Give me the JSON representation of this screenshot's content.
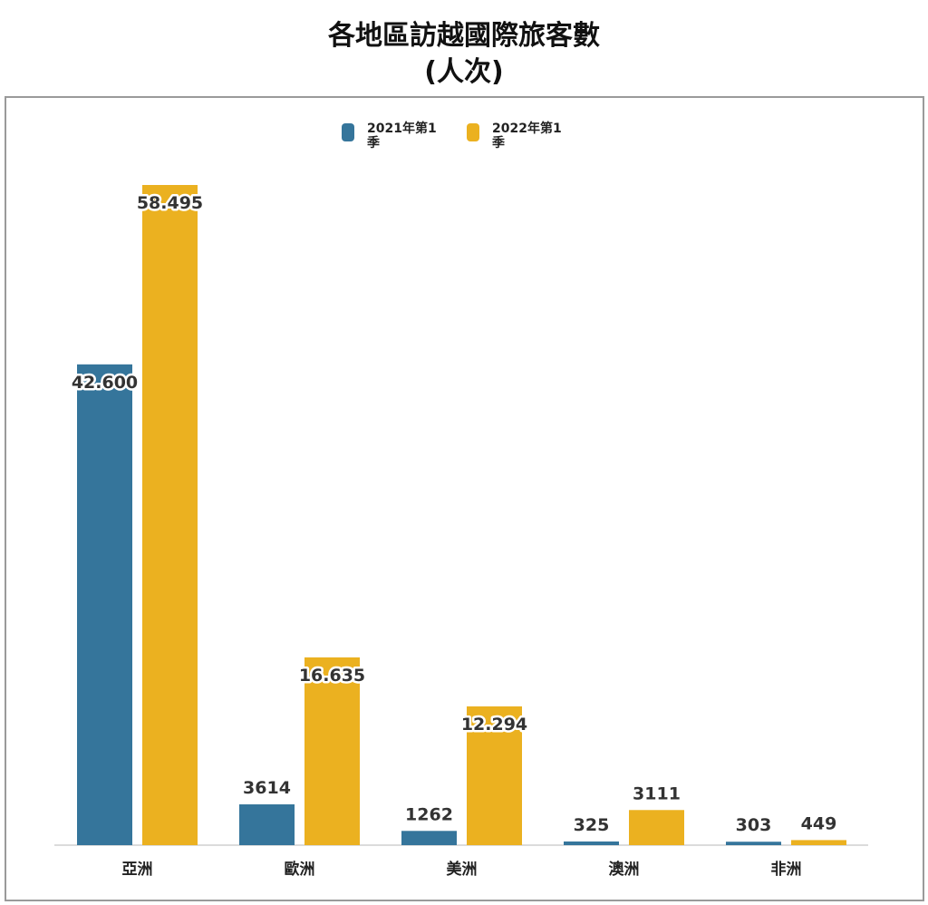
{
  "title_line1": "各地區訪越國際旅客數",
  "title_line2": "(人次)",
  "colors": {
    "series1": "#35759B",
    "series2": "#EBB120"
  },
  "legend": [
    {
      "label": "2021年第1季"
    },
    {
      "label": "2022年第1季"
    }
  ],
  "chart_data": {
    "type": "bar",
    "title": "各地區訪越國際旅客數 (人次)",
    "categories": [
      "亞洲",
      "歐洲",
      "美洲",
      "澳洲",
      "非洲"
    ],
    "series": [
      {
        "name": "2021年第1季",
        "values": [
          42600,
          3614,
          1262,
          325,
          303
        ],
        "labels": [
          "42.600",
          "3614",
          "1262",
          "325",
          "303"
        ]
      },
      {
        "name": "2022年第1季",
        "values": [
          58495,
          16635,
          12294,
          3111,
          449
        ],
        "labels": [
          "58.495",
          "16.635",
          "12.294",
          "3111",
          "449"
        ]
      }
    ],
    "ylim": [
      0,
      64000
    ],
    "grid": false,
    "legend_position": "top-center"
  }
}
